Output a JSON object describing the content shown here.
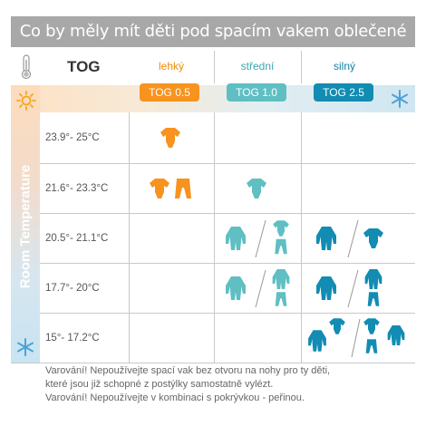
{
  "header": {
    "title": "Co by měly mít děti pod spacím vakem oblečené"
  },
  "table": {
    "tog_label": "TOG",
    "side_label": "Room Temperature",
    "columns": [
      {
        "label": "lehký",
        "tog": "TOG 0.5",
        "label_color": "#f08c00",
        "pill_color": "#f7931e"
      },
      {
        "label": "střední",
        "tog": "TOG 1.0",
        "label_color": "#3aa8ae",
        "pill_color": "#5fbfc3"
      },
      {
        "label": "silný",
        "tog": "TOG 2.5",
        "label_color": "#1282a6",
        "pill_color": "#128cb3"
      }
    ],
    "rows": [
      {
        "temp": "23.9°- 25°C"
      },
      {
        "temp": "21.6°- 23.3°C"
      },
      {
        "temp": "20.5°- 21.1°C"
      },
      {
        "temp": "17.7°- 20°C"
      },
      {
        "temp": "15°- 17.2°C"
      }
    ]
  },
  "footer": {
    "line1": "Varování! Nepoužívejte spací vak bez otvoru na nohy pro ty děti,",
    "line2": "které jsou již schopné z postýlky samostatně vylézt.",
    "line3": "Varování! Nepoužívejte v kombinaci s pokrývkou - peřinou."
  },
  "colors": {
    "light": "#f7931e",
    "medium": "#5fbfc3",
    "heavy": "#128cb3"
  }
}
